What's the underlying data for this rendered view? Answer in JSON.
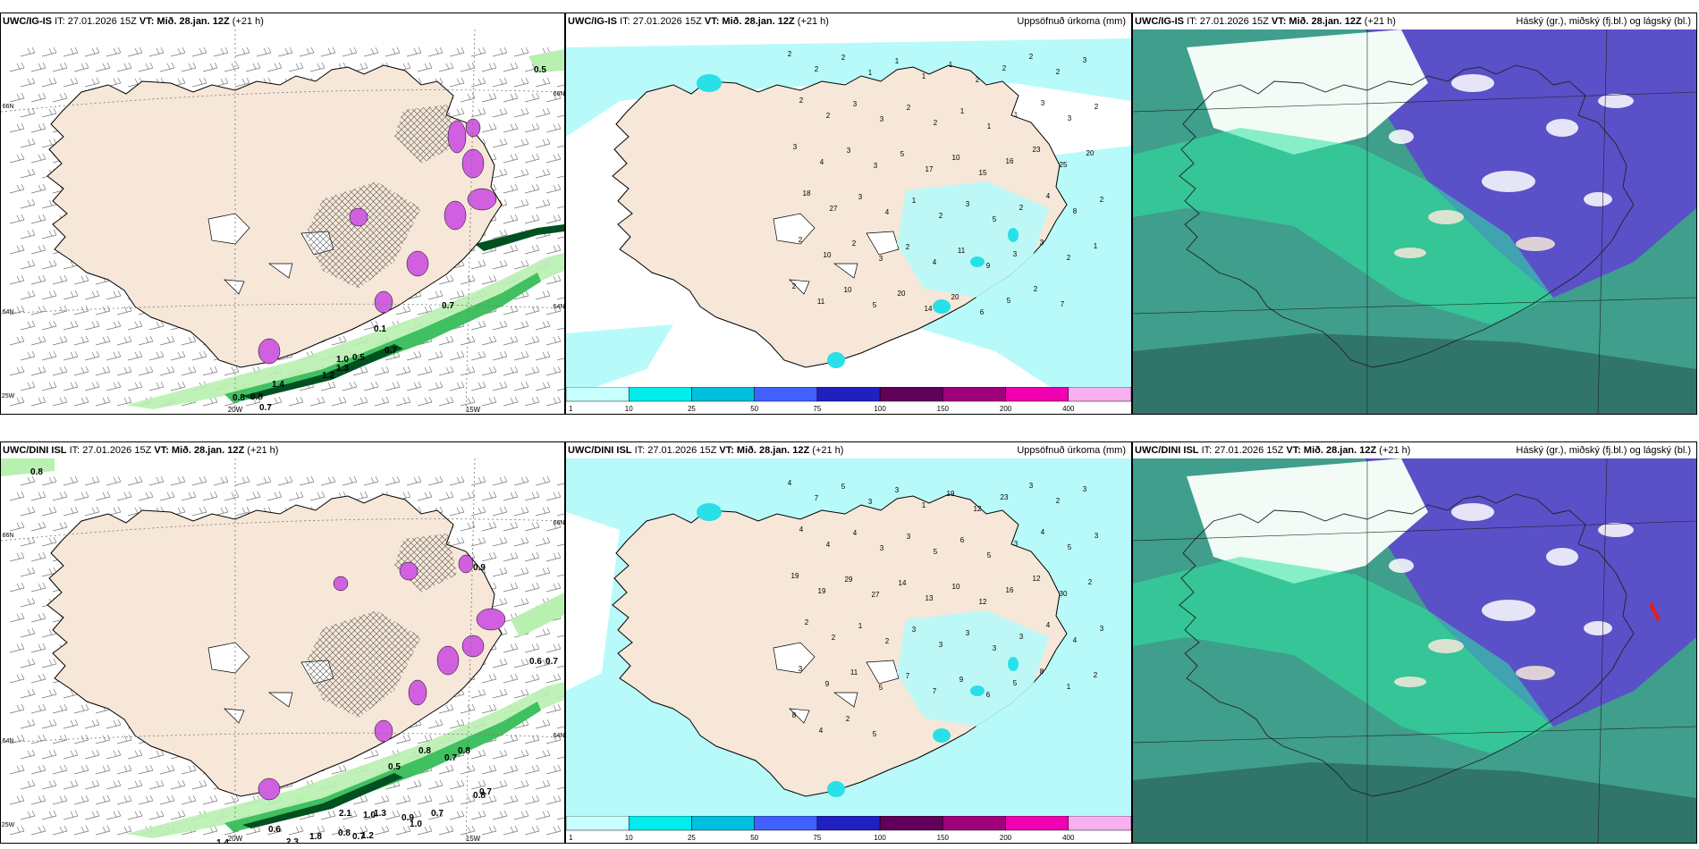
{
  "rows": [
    {
      "model": "UWC/IG-IS",
      "issue": "IT: 27.01.2026 15Z",
      "valid": "VT: Mið. 28.jan. 12Z",
      "lead": "(+21 h)",
      "precip_title": "Uppsöfnuð úrkoma (mm)",
      "cloud_title": "Háský (gr.), miðský (fj.bl.) og lágský (bl.)",
      "snow_labels": [
        "0.5",
        "0.7",
        "0.1",
        "0.7",
        "0.5",
        "1.0",
        "0.8",
        "0.8",
        "0.7",
        "1.4",
        "1.2",
        "1.3"
      ],
      "precip_labels": [
        "2",
        "2",
        "2",
        "1",
        "1",
        "1",
        "1",
        "2",
        "2",
        "2",
        "2",
        "3",
        "2",
        "2",
        "3",
        "3",
        "2",
        "2",
        "1",
        "1",
        "1",
        "3",
        "3",
        "2",
        "3",
        "4",
        "3",
        "3",
        "5",
        "17",
        "10",
        "15",
        "16",
        "23",
        "25",
        "20",
        "18",
        "27",
        "3",
        "4",
        "1",
        "2",
        "3",
        "5",
        "2",
        "4",
        "8",
        "2",
        "2",
        "10",
        "2",
        "3",
        "2",
        "4",
        "11",
        "9",
        "3",
        "3",
        "2",
        "1",
        "2",
        "11",
        "10",
        "5",
        "20",
        "14",
        "20",
        "6",
        "5",
        "2",
        "7"
      ],
      "axis": {
        "lat_top": "66N",
        "lat_mid": "64N",
        "lon_left": "25W",
        "lon_a": "20W",
        "lon_b": "15W",
        "lat_right_top": "66N",
        "lat_right_mid": "64N"
      }
    },
    {
      "model": "UWC/DINI ISL",
      "issue": "IT: 27.01.2026 15Z",
      "valid": "VT: Mið. 28.jan. 12Z",
      "lead": "(+21 h)",
      "precip_title": "Uppsöfnuð úrkoma (mm)",
      "cloud_title": "Háský (gr.), miðský (fj.bl.) og lágský (bl.)",
      "snow_labels": [
        "0.8",
        "0.9",
        "0.6",
        "0.7",
        "0.8",
        "0.5",
        "0.7",
        "0.8",
        "0.8",
        "2.1",
        "1.0",
        "1.3",
        "0.9",
        "0.7",
        "1.2",
        "1.0",
        "0.6",
        "1.4",
        "2.3",
        "1.8",
        "0.8",
        "0.7",
        "0.7"
      ],
      "precip_labels": [
        "4",
        "7",
        "5",
        "3",
        "3",
        "1",
        "19",
        "12",
        "23",
        "3",
        "2",
        "3",
        "4",
        "4",
        "4",
        "3",
        "3",
        "5",
        "6",
        "5",
        "3",
        "4",
        "5",
        "3",
        "19",
        "19",
        "29",
        "27",
        "14",
        "13",
        "10",
        "12",
        "16",
        "12",
        "30",
        "2",
        "2",
        "2",
        "1",
        "2",
        "3",
        "3",
        "3",
        "3",
        "3",
        "4",
        "4",
        "3",
        "3",
        "9",
        "11",
        "5",
        "7",
        "7",
        "9",
        "6",
        "5",
        "8",
        "1",
        "2",
        "8",
        "4",
        "2",
        "5"
      ],
      "axis": {
        "lat_top": "66N",
        "lat_mid": "64N",
        "lon_left": "25W",
        "lon_a": "20W",
        "lon_b": "15W",
        "lat_right_top": "66N",
        "lat_right_mid": "64N"
      }
    }
  ],
  "colorbar": {
    "ticks": [
      "1",
      "10",
      "25",
      "50",
      "75",
      "100",
      "150",
      "200",
      "400"
    ],
    "colors": [
      "#c8ffff",
      "#00eded",
      "#00bfdf",
      "#4060ff",
      "#2020c0",
      "#60005a",
      "#a0007c",
      "#f000b0",
      "#f8b0f0"
    ]
  },
  "colors": {
    "land": "#f6e7d8",
    "snow_light": "#b8f0b0",
    "snow_mid": "#40c060",
    "snow_dark": "#005020",
    "magenta": "#d060e0",
    "precip_light": "#b8fafa",
    "precip_mid": "#28e0e8",
    "cloud_teal": "#3f9e8c",
    "cloud_green": "#2ee6a0",
    "cloud_purple": "#5a50c8",
    "cloud_white": "#ffffff"
  }
}
